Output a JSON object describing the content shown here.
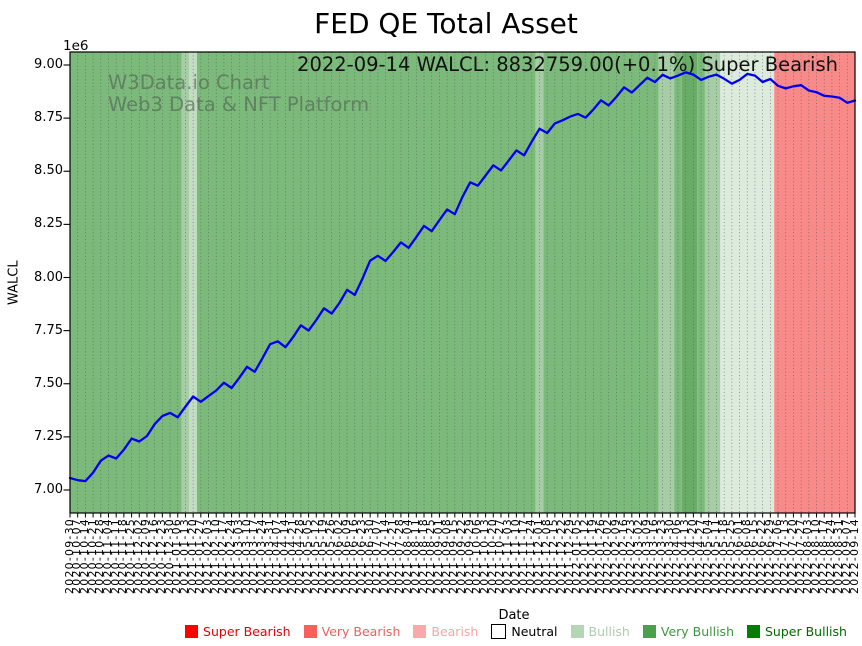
{
  "title": "FED QE Total Asset",
  "annotation": "2022-09-14 WALCL: 8832759.00(+0.1%) Super Bearish",
  "watermark": {
    "line1": "W3Data.io Chart",
    "line2": "Web3 Data & NFT Platform"
  },
  "axes": {
    "x_label": "Date",
    "y_label": "WALCL",
    "y_offset_label": "1e6"
  },
  "chart_data": {
    "type": "line",
    "title": "FED QE Total Asset",
    "xlabel": "Date",
    "ylabel": "WALCL",
    "y_scale_note": "1e6",
    "ylim": [
      6892000,
      9066000
    ],
    "yticks": [
      7000000,
      7250000,
      7500000,
      7750000,
      8000000,
      8250000,
      8500000,
      8750000,
      9000000
    ],
    "grid": "vertical-dotted",
    "legend_position": "bottom",
    "x": [
      "2020-09-30",
      "2020-10-07",
      "2020-10-14",
      "2020-10-21",
      "2020-10-28",
      "2020-11-04",
      "2020-11-11",
      "2020-11-18",
      "2020-11-25",
      "2020-12-02",
      "2020-12-09",
      "2020-12-16",
      "2020-12-23",
      "2020-12-30",
      "2021-01-06",
      "2021-01-13",
      "2021-01-20",
      "2021-01-27",
      "2021-02-03",
      "2021-02-10",
      "2021-02-17",
      "2021-02-24",
      "2021-03-03",
      "2021-03-10",
      "2021-03-17",
      "2021-03-24",
      "2021-03-31",
      "2021-04-07",
      "2021-04-14",
      "2021-04-21",
      "2021-04-28",
      "2021-05-05",
      "2021-05-12",
      "2021-05-19",
      "2021-05-26",
      "2021-06-02",
      "2021-06-09",
      "2021-06-16",
      "2021-06-23",
      "2021-06-30",
      "2021-07-07",
      "2021-07-14",
      "2021-07-21",
      "2021-07-28",
      "2021-08-04",
      "2021-08-11",
      "2021-08-18",
      "2021-08-25",
      "2021-09-01",
      "2021-09-08",
      "2021-09-15",
      "2021-09-22",
      "2021-09-29",
      "2021-10-06",
      "2021-10-13",
      "2021-10-20",
      "2021-10-27",
      "2021-11-03",
      "2021-11-10",
      "2021-11-17",
      "2021-11-24",
      "2021-12-01",
      "2021-12-08",
      "2021-12-15",
      "2021-12-22",
      "2021-12-29",
      "2022-01-05",
      "2022-01-12",
      "2022-01-19",
      "2022-01-26",
      "2022-02-02",
      "2022-02-09",
      "2022-02-16",
      "2022-02-23",
      "2022-03-02",
      "2022-03-09",
      "2022-03-16",
      "2022-03-23",
      "2022-03-30",
      "2022-04-06",
      "2022-04-13",
      "2022-04-20",
      "2022-04-27",
      "2022-05-04",
      "2022-05-11",
      "2022-05-18",
      "2022-05-25",
      "2022-06-01",
      "2022-06-08",
      "2022-06-15",
      "2022-06-22",
      "2022-06-29",
      "2022-07-06",
      "2022-07-13",
      "2022-07-20",
      "2022-07-27",
      "2022-08-03",
      "2022-08-10",
      "2022-08-17",
      "2022-08-24",
      "2022-08-31",
      "2022-09-07",
      "2022-09-14"
    ],
    "series": [
      {
        "name": "WALCL",
        "color": "#0000ee",
        "values": [
          7056343,
          7046000,
          7042000,
          7082000,
          7138000,
          7162000,
          7148000,
          7190000,
          7242000,
          7228000,
          7254000,
          7310000,
          7348000,
          7363000,
          7342000,
          7392000,
          7440000,
          7415000,
          7442000,
          7468000,
          7505000,
          7480000,
          7528000,
          7580000,
          7556000,
          7620000,
          7686000,
          7700000,
          7672000,
          7720000,
          7775000,
          7750000,
          7800000,
          7855000,
          7830000,
          7880000,
          7942000,
          7918000,
          7995000,
          8079000,
          8102000,
          8078000,
          8120000,
          8165000,
          8140000,
          8190000,
          8243000,
          8218000,
          8270000,
          8320000,
          8298000,
          8380000,
          8448000,
          8432000,
          8480000,
          8528000,
          8504000,
          8550000,
          8598000,
          8575000,
          8640000,
          8700000,
          8680000,
          8725000,
          8740000,
          8757000,
          8770000,
          8752000,
          8790000,
          8834000,
          8810000,
          8850000,
          8895000,
          8870000,
          8905000,
          8940000,
          8920000,
          8954000,
          8937000,
          8950000,
          8965000,
          8955000,
          8930000,
          8945000,
          8955000,
          8935000,
          8912000,
          8930000,
          8958000,
          8950000,
          8920000,
          8934000,
          8902000,
          8890000,
          8900000,
          8905000,
          8880000,
          8872000,
          8855000,
          8852000,
          8846000,
          8822000,
          8832759
        ]
      }
    ],
    "latest_point": {
      "date": "2022-09-14",
      "value": 8832759,
      "change_pct": "+0.1%",
      "sentiment": "Super Bearish"
    },
    "band_colors": {
      "very_bullish": "#7cba7c",
      "very_bullish_dark": "#68ac68",
      "bullish": "#a6cda6",
      "bullish_light": "#c3ddc3",
      "bullish_pale": "#dcebdc",
      "very_bearish_band": "#f98a8a"
    },
    "band_segments": [
      {
        "from": 0,
        "to": 14,
        "color_key": "very_bullish"
      },
      {
        "from": 15,
        "to": 15,
        "color_key": "bullish"
      },
      {
        "from": 16,
        "to": 16,
        "color_key": "bullish_light"
      },
      {
        "from": 17,
        "to": 60,
        "color_key": "very_bullish"
      },
      {
        "from": 61,
        "to": 61,
        "color_key": "bullish"
      },
      {
        "from": 62,
        "to": 76,
        "color_key": "very_bullish"
      },
      {
        "from": 77,
        "to": 78,
        "color_key": "bullish"
      },
      {
        "from": 79,
        "to": 79,
        "color_key": "very_bullish"
      },
      {
        "from": 80,
        "to": 81,
        "color_key": "very_bullish_dark"
      },
      {
        "from": 82,
        "to": 82,
        "color_key": "very_bullish"
      },
      {
        "from": 83,
        "to": 84,
        "color_key": "bullish"
      },
      {
        "from": 85,
        "to": 91,
        "color_key": "bullish_pale"
      },
      {
        "from": 92,
        "to": 102,
        "color_key": "very_bearish_band"
      }
    ],
    "legend": [
      {
        "label": "Super Bearish",
        "swatch": "#ff0000",
        "text": "#e8000b",
        "border": "none"
      },
      {
        "label": "Very Bearish",
        "swatch": "#f95f5f",
        "text": "#f05f5f",
        "border": "none"
      },
      {
        "label": "Bearish",
        "swatch": "#f6aaaa",
        "text": "#f3a6a6",
        "border": "none"
      },
      {
        "label": "Neutral",
        "swatch": "#ffffff",
        "text": "#000000",
        "border": "#000000"
      },
      {
        "label": "Bullish",
        "swatch": "#b5d6b5",
        "text": "#abcfab",
        "border": "none"
      },
      {
        "label": "Very Bullish",
        "swatch": "#4d9f4d",
        "text": "#3f953f",
        "border": "none"
      },
      {
        "label": "Super Bullish",
        "swatch": "#057d05",
        "text": "#006a00",
        "border": "none"
      }
    ]
  }
}
